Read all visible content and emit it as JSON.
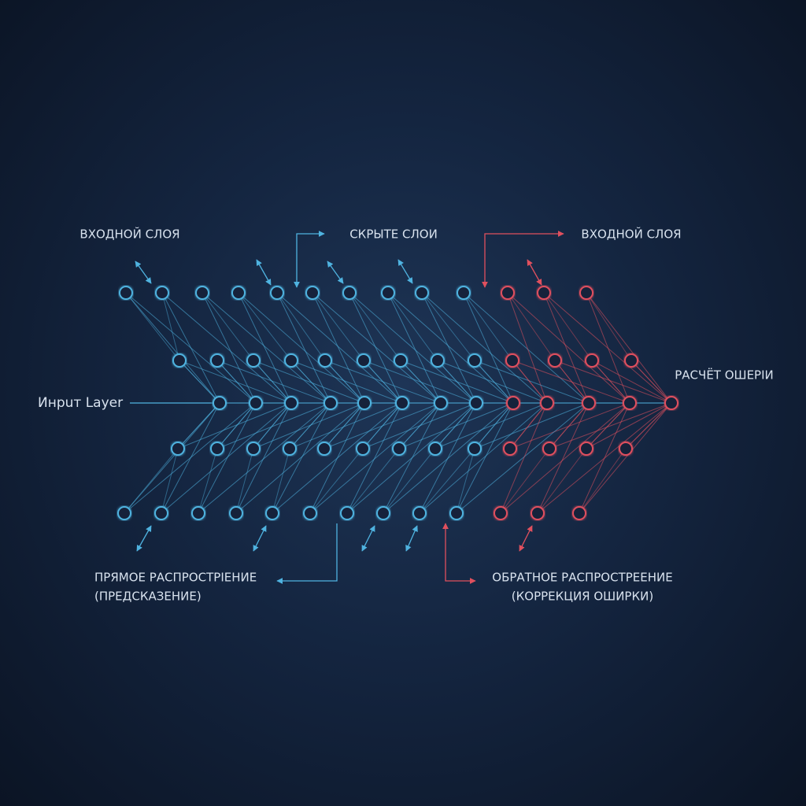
{
  "labels": {
    "input_top": "ВХОДНОЙ СЛОЯ",
    "hidden_top": "СКРЫТЕ СЛОИ",
    "output_top": "ВХОДНОЙ СЛОЯ",
    "input_layer": "Инрuт Layer",
    "error_calc": "РАСЧЁТ ОШЕРІИ",
    "forward_line1": "ПРЯМОЕ РАСПРОСТРІЕНИЕ",
    "forward_line2": "(ПРЕДСКАЗЕНИЕ)",
    "backward_line1": "ОБРАТНОЕ РАСПРОСТРЕЕНИЕ",
    "backward_line2": "(КОРРЕКЦИЯ ОШИРКИ)"
  }
}
